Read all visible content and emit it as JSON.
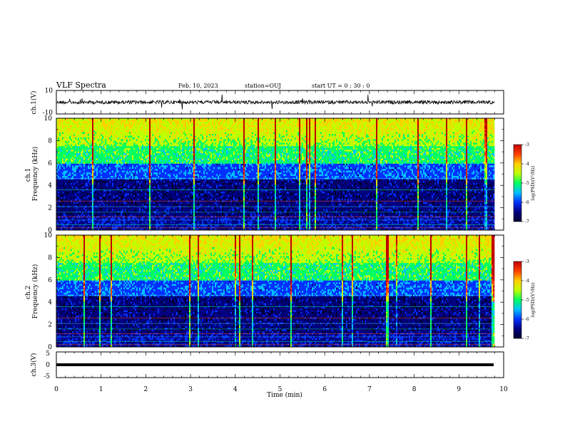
{
  "header": {
    "title": "VLF Spectra",
    "date": "Feb. 10, 2023",
    "station": "station=OUJ",
    "start": "start  UT =   0 : 30 : 0"
  },
  "colors": {
    "waveform": "#000000",
    "colormap": [
      "#000030",
      "#000080",
      "#0030ff",
      "#00c0ff",
      "#00ff60",
      "#c0ff00",
      "#ffd000",
      "#ff4000",
      "#c00000"
    ]
  },
  "chart_data": [
    {
      "type": "line",
      "panel": "ch1-waveform",
      "ylabel": "ch.1(V)",
      "ylim": [
        -10,
        10
      ],
      "y_ticks": [
        "10",
        "-10"
      ],
      "xlim": [
        0,
        10
      ],
      "series": [
        {
          "values": "noisy signal centred near 0 V with occasional spikes",
          "level": 0
        }
      ]
    },
    {
      "type": "heatmap",
      "panel": "ch1-spectrogram",
      "ylabel": "ch.1 Frequency (kHz)",
      "ylim": [
        0,
        10
      ],
      "y_ticks": [
        "0",
        "2",
        "4",
        "6",
        "8",
        "10"
      ],
      "xlim": [
        0,
        10.0
      ],
      "data_end_min": 9.8,
      "colorbar": {
        "label": "log(PSD)(V²/Hz)",
        "range": [
          -7,
          -3
        ],
        "ticks": [
          "-3",
          "-4",
          "-5",
          "-6",
          "-7"
        ]
      }
    },
    {
      "type": "heatmap",
      "panel": "ch2-spectrogram",
      "ylabel": "ch.2 Frequency (kHz)",
      "ylim": [
        0,
        10
      ],
      "y_ticks": [
        "0",
        "2",
        "4",
        "6",
        "8",
        "10"
      ],
      "xlim": [
        0,
        10.0
      ],
      "data_end_min": 9.8,
      "colorbar": {
        "label": "log(PSD)(V²/Hz)",
        "range": [
          -7,
          -3
        ],
        "ticks": [
          "-3",
          "-4",
          "-5",
          "-6",
          "-7"
        ]
      }
    },
    {
      "type": "line",
      "panel": "ch3-waveform",
      "ylabel": "ch.3(V)",
      "ylim": [
        -5,
        5
      ],
      "y_ticks": [
        "5",
        "0",
        "-5"
      ],
      "xlim": [
        0,
        10
      ],
      "series": [
        {
          "values": "constant",
          "level": 0
        }
      ]
    }
  ],
  "x_axis": {
    "label": "Time  (min)",
    "ticks": [
      "0",
      "1",
      "2",
      "3",
      "4",
      "5",
      "6",
      "7",
      "8",
      "9",
      "10"
    ]
  }
}
